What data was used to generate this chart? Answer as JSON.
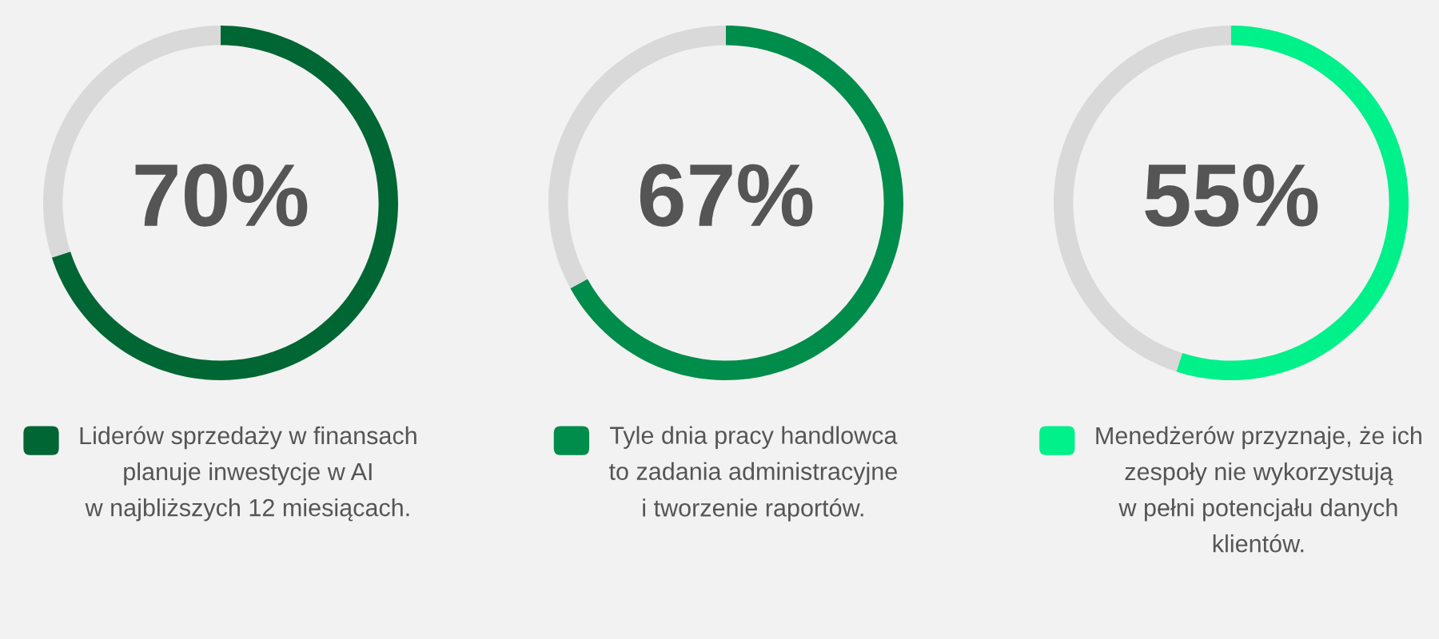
{
  "chart_data": [
    {
      "type": "donut",
      "categories": [
        "Liderów sprzedaży w finansach\nplanuje inwestycje w AI\nw najbliższych 12 miesiącach.",
        null
      ],
      "values": [
        70,
        30
      ],
      "colors": [
        "#006633",
        "#d9d9d9"
      ],
      "value_labels": [
        "70%",
        null
      ],
      "legend": "bottom"
    },
    {
      "type": "donut",
      "categories": [
        "Tyle dnia pracy handlowca\nto zadania administracyjne\ni tworzenie raportów.",
        null
      ],
      "values": [
        67,
        33
      ],
      "colors": [
        "#008c4a",
        "#d9d9d9"
      ],
      "value_labels": [
        "67%",
        null
      ],
      "legend": "bottom"
    },
    {
      "type": "donut",
      "categories": [
        "Menedżerów przyznaje, że ich\nzespoły nie wykorzystują\nw pełni potencjału danych\nklientów.",
        null
      ],
      "values": [
        55,
        45
      ],
      "colors": [
        "#00f08a",
        "#d9d9d9"
      ],
      "value_labels": [
        "55%",
        null
      ],
      "legend": "bottom"
    }
  ]
}
